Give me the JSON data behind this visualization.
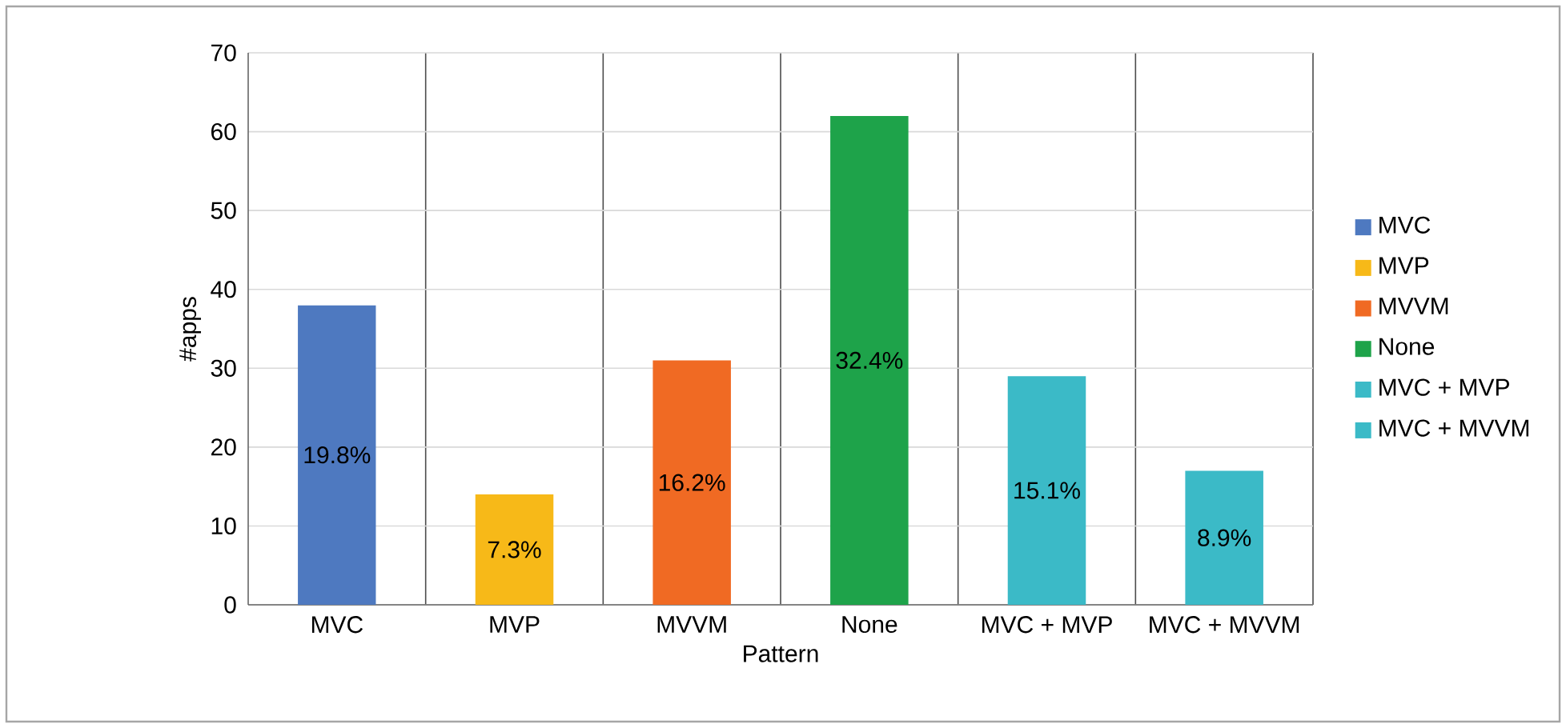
{
  "chart_data": {
    "type": "bar",
    "xlabel": "Pattern",
    "ylabel": "#apps",
    "categories": [
      "MVC",
      "MVP",
      "MVVM",
      "None",
      "MVC + MVP",
      "MVC + MVVM"
    ],
    "series": [
      {
        "name": "MVC",
        "color": "#4e79c0",
        "values": [
          38,
          null,
          null,
          null,
          null,
          null
        ]
      },
      {
        "name": "MVP",
        "color": "#f7b918",
        "values": [
          null,
          14,
          null,
          null,
          null,
          null
        ]
      },
      {
        "name": "MVVM",
        "color": "#f06a23",
        "values": [
          null,
          null,
          31,
          null,
          null,
          null
        ]
      },
      {
        "name": "None",
        "color": "#1ea34a",
        "values": [
          null,
          null,
          null,
          62,
          null,
          null
        ]
      },
      {
        "name": "MVC + MVP",
        "color": "#3bbac7",
        "values": [
          null,
          null,
          null,
          null,
          29,
          null
        ]
      },
      {
        "name": "MVC + MVVM",
        "color": "#3bbac7",
        "values": [
          null,
          null,
          null,
          null,
          null,
          17
        ]
      }
    ],
    "annotations": [
      "19.8%",
      "7.3%",
      "16.2%",
      "32.4%",
      "15.1%",
      "8.9%"
    ],
    "ylim": [
      0,
      70
    ],
    "yticks": [
      0,
      10,
      20,
      30,
      40,
      50,
      60,
      70
    ],
    "grid": true,
    "legend": "right"
  }
}
